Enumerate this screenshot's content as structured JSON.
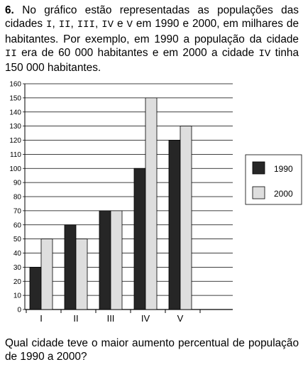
{
  "question": {
    "number": "6.",
    "t1": "No gráfico estão representadas as populações das cidades",
    "c1": "I",
    "s1": ",",
    "c2": "II",
    "s2": ",",
    "c3": "III",
    "s3": ",",
    "c4": "IV",
    "s4": "e",
    "c5": "V",
    "t2": "em 1990 e 2000, em milhares de habitantes. Por exemplo, em 1990 a população da cidade",
    "c6": "II",
    "t3": "era de 60 000 habitantes e em 2000 a cidade",
    "c7": "IV",
    "t4": "tinha 150 000 habitantes."
  },
  "footer": {
    "text": "Qual cidade teve o maior aumento percentual de população de 1990 a 2000?"
  },
  "colors": {
    "s1990": "#262626",
    "s2000": "#dedede",
    "grid": "#000000"
  },
  "chart_data": {
    "type": "bar",
    "title": "",
    "xlabel": "",
    "ylabel": "",
    "categories": [
      "I",
      "II",
      "III",
      "IV",
      "V"
    ],
    "series": [
      {
        "name": "1990",
        "values": [
          30,
          60,
          70,
          100,
          120
        ]
      },
      {
        "name": "2000",
        "values": [
          50,
          50,
          70,
          150,
          130
        ]
      }
    ],
    "ylim": [
      0,
      160
    ],
    "yticks": [
      "0",
      "10",
      "20",
      "30",
      "40",
      "50",
      "60",
      "70",
      "80",
      "90",
      "100",
      "110",
      "120",
      "130",
      "140",
      "150",
      "160"
    ],
    "grid": true,
    "legend": {
      "position": "right",
      "entries": [
        "1990",
        "2000"
      ]
    }
  }
}
